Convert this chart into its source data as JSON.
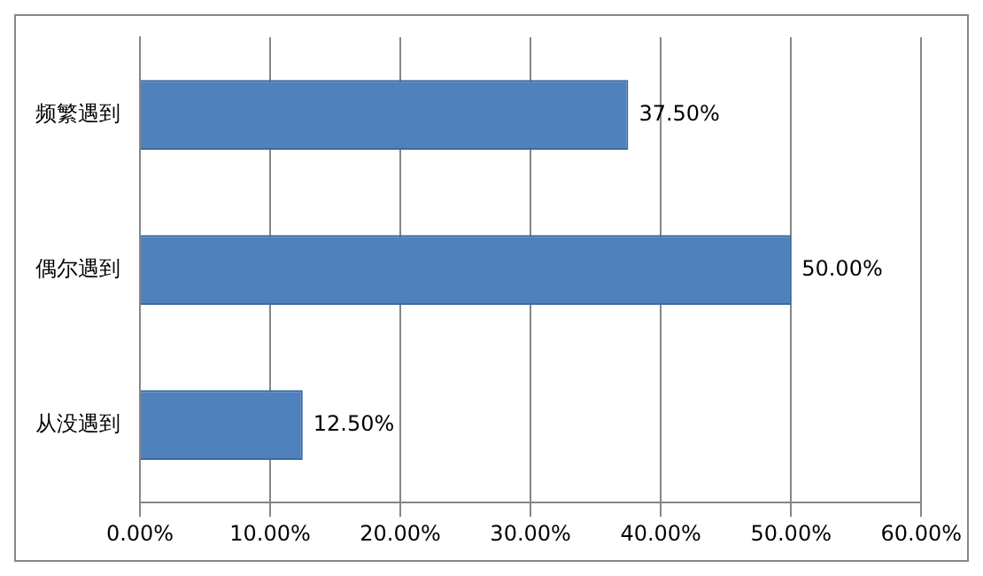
{
  "chart_data": {
    "type": "bar",
    "orientation": "horizontal",
    "categories": [
      "频繁遇到",
      "偶尔遇到",
      "从没遇到"
    ],
    "values": [
      37.5,
      50,
      12.5
    ],
    "value_labels": [
      "37.50%",
      "50.00%",
      "12.50%"
    ],
    "color": "#4f81bd",
    "xlim": [
      0,
      60
    ],
    "xticks": [
      {
        "value": 0,
        "label": "0.00%"
      },
      {
        "value": 10,
        "label": "10.00%"
      },
      {
        "value": 20,
        "label": "20.00%"
      },
      {
        "value": 30,
        "label": "30.00%"
      },
      {
        "value": 40,
        "label": "40.00%"
      },
      {
        "value": 50,
        "label": "50.00%"
      },
      {
        "value": 60,
        "label": "60.00%"
      }
    ],
    "grid": "x",
    "legend": false
  }
}
